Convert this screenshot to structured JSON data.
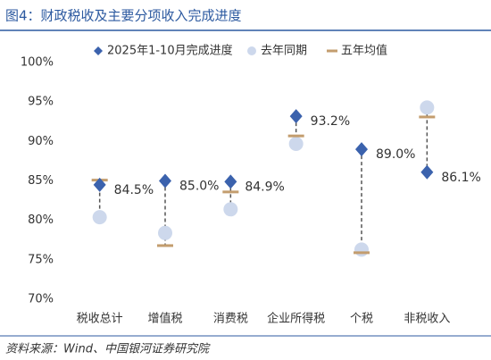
{
  "chart_data": {
    "type": "dot",
    "title": "图4：财政税收及主要分项收入完成进度",
    "source": "资料来源：Wind、中国银河证券研究院",
    "categories": [
      "税收总计",
      "增值税",
      "消费税",
      "企业所得税",
      "个税",
      "非税收入"
    ],
    "series": [
      {
        "name": "2025年1-10月完成进度",
        "color": "#3b62ad",
        "marker": "diamond",
        "values": [
          84.5,
          85.0,
          84.9,
          93.2,
          89.0,
          86.1
        ],
        "value_labels": [
          "84.5%",
          "85.0%",
          "84.9%",
          "93.2%",
          "89.0%",
          "86.1%"
        ]
      },
      {
        "name": "去年同期",
        "color": "#cdd8ec",
        "marker": "circle",
        "values": [
          80.4,
          78.4,
          81.4,
          89.7,
          76.3,
          94.3
        ]
      },
      {
        "name": "五年均值",
        "color": "#c39d6e",
        "marker": "dash",
        "values": [
          85.1,
          76.8,
          83.6,
          90.7,
          75.9,
          93.1
        ]
      }
    ],
    "ylim": [
      70,
      100
    ],
    "yticks": [
      {
        "value": 70,
        "label": "70%"
      },
      {
        "value": 75,
        "label": "75%"
      },
      {
        "value": 80,
        "label": "80%"
      },
      {
        "value": 85,
        "label": "85%"
      },
      {
        "value": 90,
        "label": "90%"
      },
      {
        "value": 95,
        "label": "95%"
      },
      {
        "value": 100,
        "label": "100%"
      }
    ]
  }
}
